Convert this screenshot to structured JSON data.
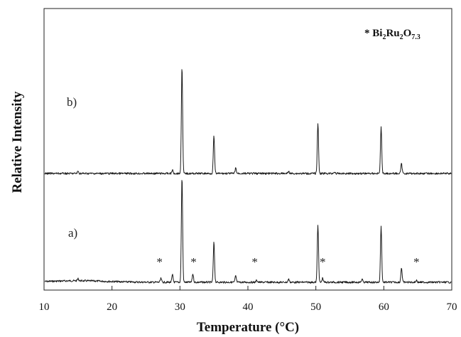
{
  "chart_data": {
    "type": "line",
    "xlabel": "Temperature (°C)",
    "ylabel": "Relative Intensity",
    "xlim": [
      10,
      70
    ],
    "xticks": [
      10,
      20,
      30,
      40,
      50,
      60,
      70
    ],
    "grid": false,
    "legend": {
      "placement": "top-right",
      "marker": "*",
      "formula": [
        {
          "t": "Bi",
          "sub": false
        },
        {
          "t": "2",
          "sub": true
        },
        {
          "t": "Ru",
          "sub": false
        },
        {
          "t": "2",
          "sub": true
        },
        {
          "t": "O",
          "sub": false
        },
        {
          "t": "7.3",
          "sub": true
        }
      ]
    },
    "series": [
      {
        "label": "a)",
        "baseline": 0.03,
        "peaks": [
          [
            15.0,
            0.02
          ],
          [
            27.2,
            0.035
          ],
          [
            28.9,
            0.07
          ],
          [
            30.3,
            1.0
          ],
          [
            31.9,
            0.08
          ],
          [
            35.0,
            0.38
          ],
          [
            38.2,
            0.06
          ],
          [
            41.3,
            0.02
          ],
          [
            46.0,
            0.03
          ],
          [
            50.3,
            0.55
          ],
          [
            51.0,
            0.04
          ],
          [
            56.8,
            0.03
          ],
          [
            59.6,
            0.53
          ],
          [
            62.6,
            0.14
          ],
          [
            64.8,
            0.02
          ]
        ],
        "markers": [
          27.0,
          32.0,
          41.0,
          51.0,
          64.8
        ]
      },
      {
        "label": "b)",
        "baseline": 0.0,
        "peaks": [
          [
            15.0,
            0.02
          ],
          [
            28.9,
            0.03
          ],
          [
            30.3,
            1.0
          ],
          [
            35.0,
            0.35
          ],
          [
            38.2,
            0.05
          ],
          [
            46.0,
            0.02
          ],
          [
            50.3,
            0.47
          ],
          [
            52.7,
            0.015
          ],
          [
            59.6,
            0.43
          ],
          [
            62.6,
            0.09
          ]
        ],
        "markers": []
      }
    ]
  }
}
